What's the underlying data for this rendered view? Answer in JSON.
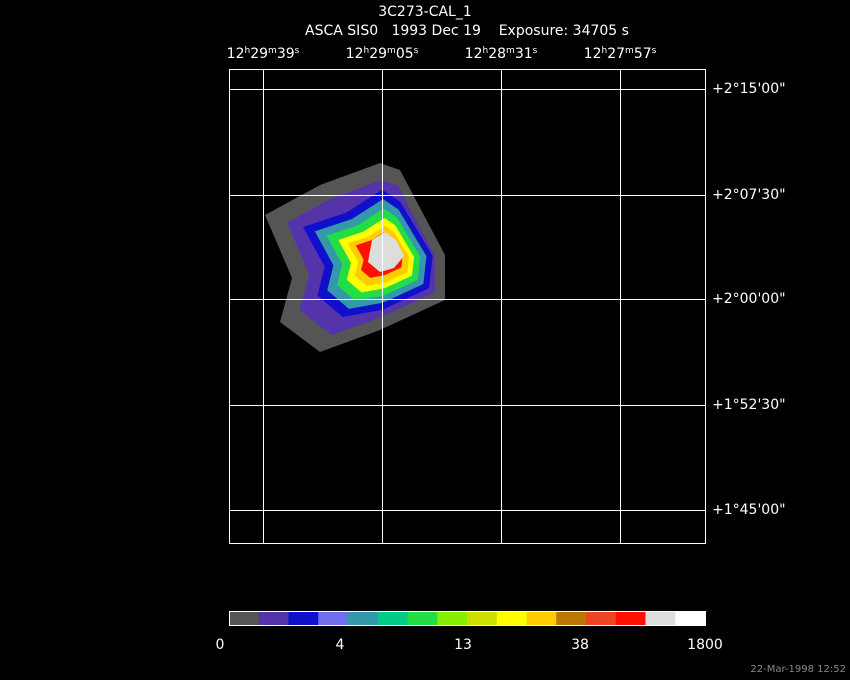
{
  "header": {
    "title": "3C273-CAL_1",
    "subtitle": "ASCA SIS0   1993 Dec 19    Exposure: 34705 s"
  },
  "ra_labels": [
    [
      "12",
      "h",
      "29",
      "m",
      "39",
      "s"
    ],
    [
      "12",
      "h",
      "29",
      "m",
      "05",
      "s"
    ],
    [
      "12",
      "h",
      "28",
      "m",
      "31",
      "s"
    ],
    [
      "12",
      "h",
      "27",
      "m",
      "57",
      "s"
    ]
  ],
  "dec_labels": [
    "+2°15'00\"",
    "+2°07'30\"",
    "+2°00'00\"",
    "+1°52'30\"",
    "+1°45'00\""
  ],
  "colorbar": {
    "colors": [
      "#555555",
      "#5533aa",
      "#1010cc",
      "#7070ee",
      "#3399aa",
      "#00cc88",
      "#22dd44",
      "#88ee00",
      "#ccdd00",
      "#ffff00",
      "#ffcc00",
      "#bb7700",
      "#ee4422",
      "#ff1100",
      "#dddddd",
      "#ffffff"
    ],
    "labels": [
      "0",
      "4",
      "13",
      "38",
      "1800"
    ]
  },
  "footer": "22-Mar-1998 12:52"
}
